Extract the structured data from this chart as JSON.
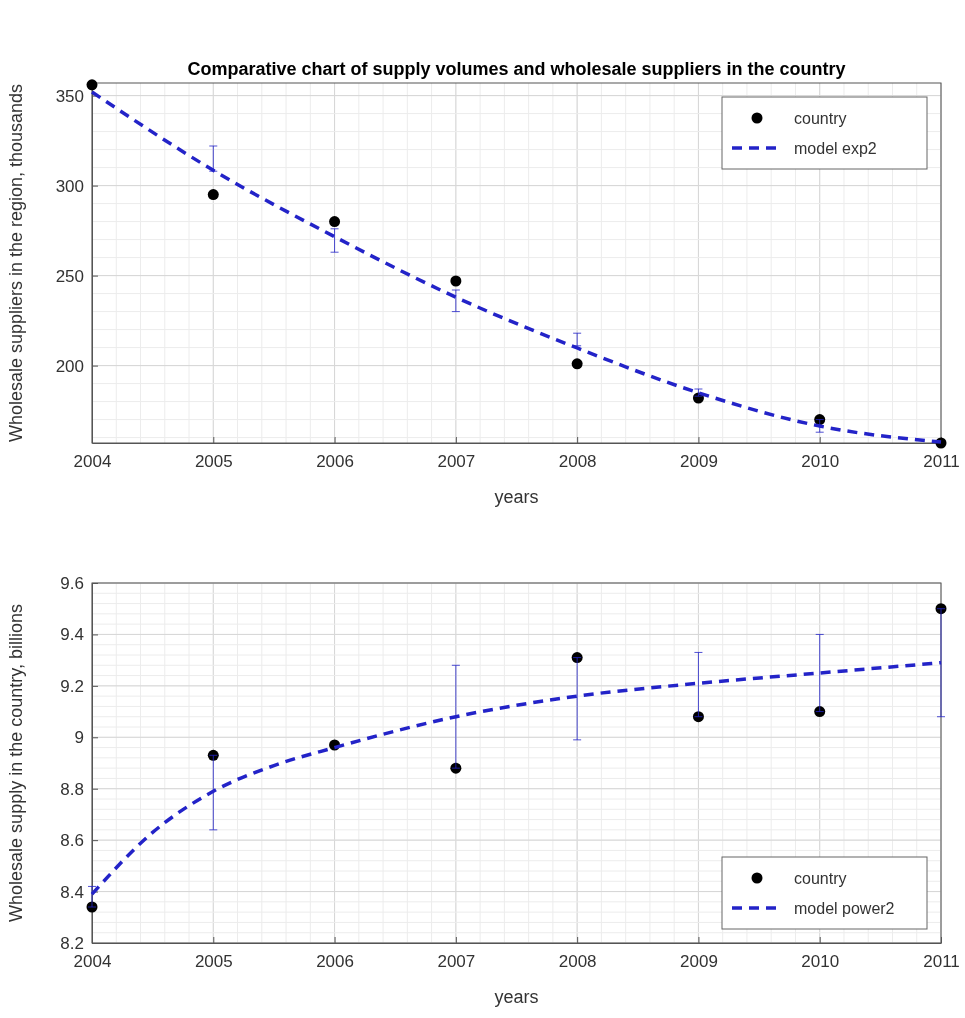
{
  "chart_data": [
    {
      "type": "scatter",
      "title": "Comparative chart of supply volumes and wholesale suppliers in the country",
      "xlabel": "years",
      "ylabel": "Wholesale suppliers in the region, thousands",
      "xlim": [
        2004,
        2011
      ],
      "xticks": [
        2004,
        2005,
        2006,
        2007,
        2008,
        2009,
        2010,
        2011
      ],
      "ylim": [
        157,
        357
      ],
      "yticks": [
        200,
        250,
        300,
        350
      ],
      "grid": true,
      "legend": "top right",
      "x": [
        2004,
        2005,
        2006,
        2007,
        2008,
        2009,
        2010,
        2011
      ],
      "series": [
        {
          "name": "country",
          "color": "#000000",
          "values": [
            356,
            295,
            280,
            247,
            201,
            182,
            170,
            157
          ]
        },
        {
          "name": "model exp2",
          "type": "line",
          "line_style": "dashed",
          "marker": "none",
          "color": "#2323c8",
          "x": [
            2004,
            2005,
            2006,
            2007,
            2008,
            2009,
            2010,
            2011
          ],
          "values": [
            352,
            308.5,
            271.6,
            238,
            209.8,
            184.9,
            166.4,
            157.5
          ],
          "errors": [
            null,
            [
              308,
              322
            ],
            [
              263,
              276
            ],
            [
              230,
              242
            ],
            [
              211,
              218
            ],
            [
              183,
              187
            ],
            [
              163,
              170
            ],
            null
          ]
        }
      ]
    },
    {
      "type": "scatter",
      "xlabel": "years",
      "ylabel": "Wholesale supply in the country, billions",
      "xlim": [
        2004,
        2011
      ],
      "xticks": [
        2004,
        2005,
        2006,
        2007,
        2008,
        2009,
        2010,
        2011
      ],
      "ylim": [
        8.2,
        9.6
      ],
      "yticks": [
        8.2,
        8.4,
        8.6,
        8.8,
        9,
        9.2,
        9.4,
        9.6
      ],
      "grid": true,
      "legend": "bottom right",
      "x": [
        2004,
        2005,
        2006,
        2007,
        2008,
        2009,
        2010,
        2011
      ],
      "series": [
        {
          "name": "country",
          "color": "#000000",
          "values": [
            8.34,
            8.93,
            8.97,
            8.88,
            9.31,
            9.08,
            9.1,
            9.5
          ]
        },
        {
          "name": "model power2",
          "type": "line",
          "line_style": "dashed",
          "marker": "none",
          "color": "#2323c8",
          "x": [
            2004,
            2004.5,
            2005,
            2005.5,
            2006,
            2007,
            2008,
            2009,
            2010,
            2011
          ],
          "values": [
            8.39,
            8.63,
            8.79,
            8.89,
            8.96,
            9.08,
            9.16,
            9.21,
            9.25,
            9.29
          ],
          "errors": [
            [
              8.34,
              8.42
            ],
            null,
            [
              8.64,
              8.93
            ],
            null,
            null,
            [
              8.88,
              9.28
            ],
            [
              8.99,
              9.31
            ],
            [
              9.08,
              9.33
            ],
            [
              9.1,
              9.4
            ],
            [
              9.08,
              9.5
            ]
          ]
        }
      ]
    }
  ]
}
